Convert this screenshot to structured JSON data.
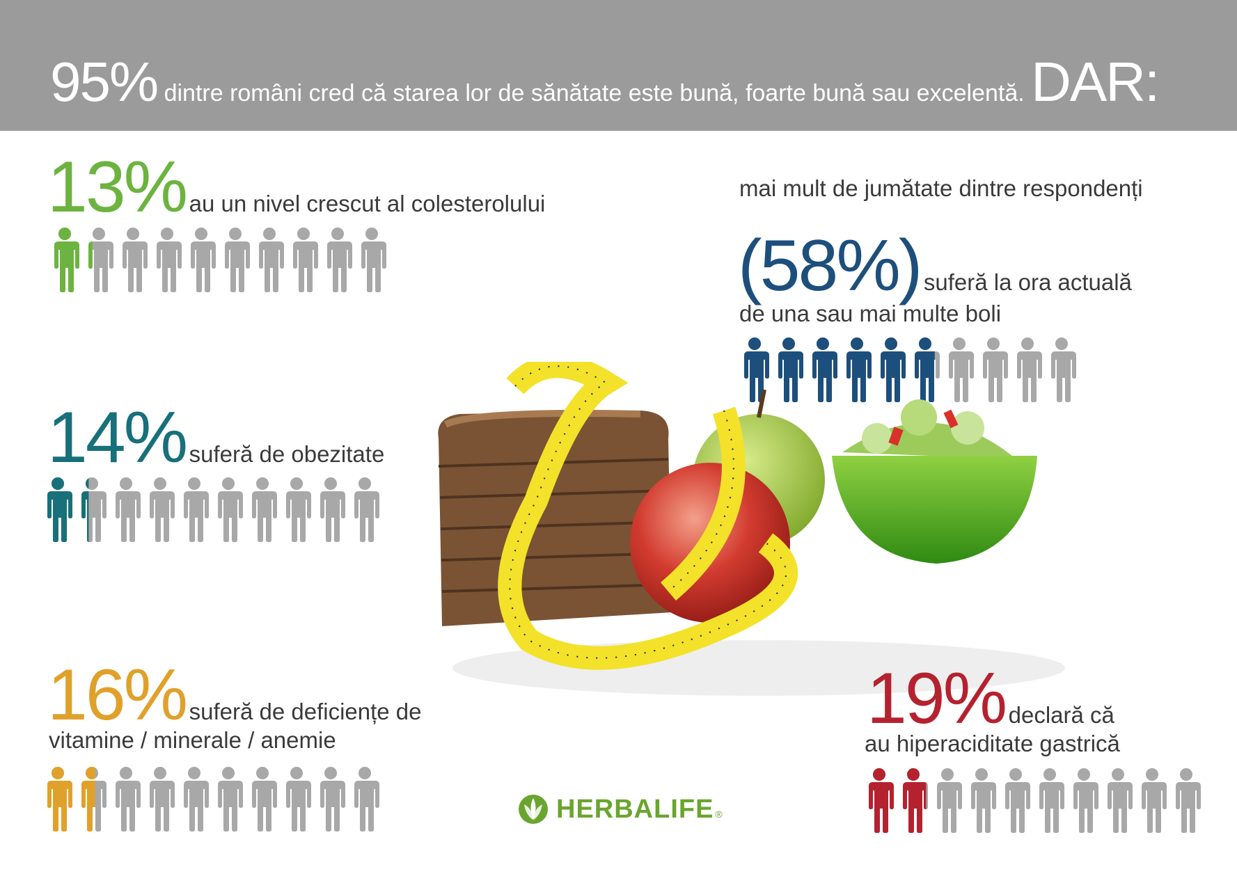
{
  "header": {
    "pct": "95%",
    "text": " dintre români cred că starea lor de sănătate este bună, foarte bună sau excelentă. ",
    "tail": "DAR:"
  },
  "stats": {
    "cholesterol": {
      "pct": "13%",
      "text": "au un nivel crescut al colesterolului",
      "color": "#6db33f",
      "highlighted_fraction": 1.3,
      "total_icons": 10
    },
    "obesity": {
      "pct": "14%",
      "text": "suferă de obezitate",
      "color": "#17707a",
      "highlighted_fraction": 1.4,
      "total_icons": 10
    },
    "deficiency": {
      "pct": "16%",
      "text": "suferă de deficiențe de",
      "text2": "vitamine / minerale / anemie",
      "color": "#e0a12b",
      "highlighted_fraction": 1.6,
      "total_icons": 10
    },
    "diseases": {
      "intro": "mai mult de jumătate dintre respondenți",
      "pct": "(58%)",
      "text": "suferă la ora actuală",
      "text2": "de una sau mai multe boli",
      "color": "#1c4f7c",
      "highlighted_fraction": 5.8,
      "total_icons": 10
    },
    "acidity": {
      "pct": "19%",
      "text": "declară că",
      "text2": "au hiperaciditate gastrică",
      "color": "#b5222f",
      "highlighted_fraction": 1.9,
      "total_icons": 10
    }
  },
  "icon_gray": "#a7a8a7",
  "logo": {
    "text": "HERBALIFE",
    "mark": "®",
    "color": "#6aa52f",
    "icon": "leaf-logo-icon"
  }
}
